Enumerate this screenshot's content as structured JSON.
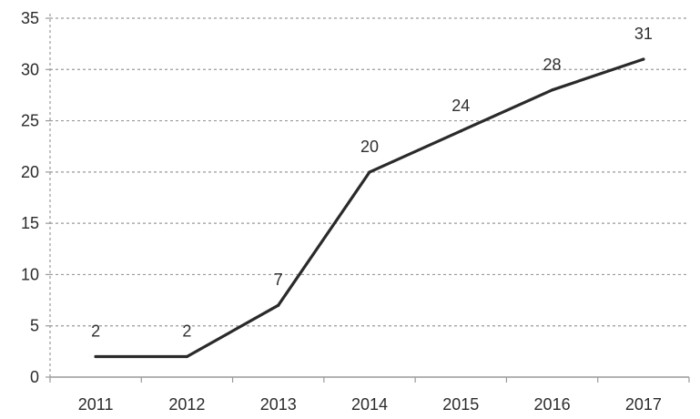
{
  "chart_data": {
    "type": "line",
    "categories": [
      "2011",
      "2012",
      "2013",
      "2014",
      "2015",
      "2016",
      "2017"
    ],
    "series": [
      {
        "values": [
          2,
          2,
          7,
          20,
          24,
          28,
          31
        ],
        "data_labels": [
          "2",
          "2",
          "7",
          "20",
          "24",
          "28",
          "31"
        ],
        "color": "#2a2a2a"
      }
    ],
    "y_ticks": [
      "0",
      "5",
      "10",
      "15",
      "20",
      "25",
      "30",
      "35"
    ],
    "ylim": [
      0,
      35
    ],
    "grid": true,
    "grid_style": "dotted horizontal",
    "grid_color": "#9a9a9a",
    "axis_color": "#9a9a9a"
  }
}
